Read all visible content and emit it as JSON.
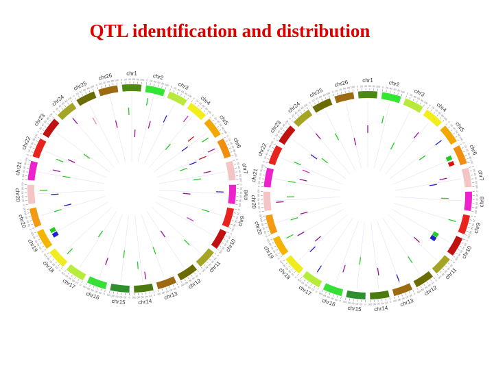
{
  "title": "QTL identification and distribution",
  "chromosomes": [
    {
      "id": "chr1",
      "label": "chr1",
      "color": "#4f8a10"
    },
    {
      "id": "chr2",
      "label": "chr2",
      "color": "#33e633"
    },
    {
      "id": "chr3",
      "label": "chr3",
      "color": "#b9e93a"
    },
    {
      "id": "chr4",
      "label": "chr4",
      "color": "#f2ee1c"
    },
    {
      "id": "chr5",
      "label": "chr5",
      "color": "#f2a800"
    },
    {
      "id": "chr6",
      "label": "chr6",
      "color": "#f28e0e"
    },
    {
      "id": "chr7",
      "label": "chr7",
      "color": "#f5c4c4"
    },
    {
      "id": "chr8",
      "label": "chr8",
      "color": "#ee22cc"
    },
    {
      "id": "chr9",
      "label": "chr9",
      "color": "#e8221c"
    },
    {
      "id": "chr10",
      "label": "chr10",
      "color": "#c01010"
    },
    {
      "id": "chr11",
      "label": "chr11",
      "color": "#a5a525"
    },
    {
      "id": "chr12",
      "label": "chr12",
      "color": "#6b6b00"
    },
    {
      "id": "chr13",
      "label": "chr13",
      "color": "#9c6a10"
    },
    {
      "id": "chr14",
      "label": "chr14",
      "color": "#4a7a10"
    },
    {
      "id": "chr15",
      "label": "chr15",
      "color": "#2f8f2f"
    },
    {
      "id": "chr16",
      "label": "chr16",
      "color": "#36e036"
    },
    {
      "id": "chr17",
      "label": "chr17",
      "color": "#b6ec3a"
    },
    {
      "id": "chr18",
      "label": "chr18",
      "color": "#f0ec20"
    },
    {
      "id": "chr19",
      "label": "chr19",
      "color": "#f5b400"
    },
    {
      "id": "chr20",
      "label": "chr20",
      "color": "#f29a14"
    },
    {
      "id": "chr20b",
      "label": "chr20",
      "color": "#f5c4c4"
    },
    {
      "id": "chr21",
      "label": "chr21",
      "color": "#ee22cc"
    },
    {
      "id": "chr22",
      "label": "chr22",
      "color": "#e8221c"
    },
    {
      "id": "chr23",
      "label": "chr23",
      "color": "#c01010"
    },
    {
      "id": "chr24",
      "label": "chr24",
      "color": "#a5a525"
    },
    {
      "id": "chr25",
      "label": "chr25",
      "color": "#6b6b00"
    },
    {
      "id": "chr26",
      "label": "chr26",
      "color": "#9c6a10"
    }
  ],
  "track_colors": {
    "green": "#22cc22",
    "blue": "#2222cc",
    "red": "#dd1111",
    "purple": "#991199",
    "magenta": "#cc33cc",
    "pink": "#ee88aa"
  },
  "plots": [
    {
      "name": "left",
      "marks": [
        {
          "chr": 0,
          "pos": 0.3,
          "track": 2,
          "color": "green"
        },
        {
          "chr": 0,
          "pos": 0.8,
          "track": 4,
          "color": "purple"
        },
        {
          "chr": 1,
          "pos": 0.2,
          "track": 1,
          "color": "green"
        },
        {
          "chr": 1,
          "pos": 0.7,
          "track": 3,
          "color": "purple"
        },
        {
          "chr": 2,
          "pos": 0.4,
          "track": 2,
          "color": "blue"
        },
        {
          "chr": 3,
          "pos": 0.3,
          "track": 1,
          "color": "magenta"
        },
        {
          "chr": 3,
          "pos": 0.6,
          "track": 4,
          "color": "green"
        },
        {
          "chr": 4,
          "pos": 0.2,
          "track": 2,
          "color": "red"
        },
        {
          "chr": 4,
          "pos": 0.5,
          "track": 3,
          "color": "blue"
        },
        {
          "chr": 4,
          "pos": 0.8,
          "track": 1,
          "color": "green"
        },
        {
          "chr": 5,
          "pos": 0.3,
          "track": 1,
          "color": "purple"
        },
        {
          "chr": 5,
          "pos": 0.5,
          "track": 2,
          "color": "red"
        },
        {
          "chr": 5,
          "pos": 0.6,
          "track": 3,
          "color": "blue"
        },
        {
          "chr": 5,
          "pos": 0.8,
          "track": 4,
          "color": "green"
        },
        {
          "chr": 6,
          "pos": 0.3,
          "track": 2,
          "color": "purple"
        },
        {
          "chr": 6,
          "pos": 0.7,
          "track": 3,
          "color": "green"
        },
        {
          "chr": 7,
          "pos": 0.4,
          "track": 1,
          "color": "blue"
        },
        {
          "chr": 7,
          "pos": 0.7,
          "track": 4,
          "color": "purple"
        },
        {
          "chr": 8,
          "pos": 0.5,
          "track": 2,
          "color": "green"
        },
        {
          "chr": 9,
          "pos": 0.3,
          "track": 3,
          "color": "magenta"
        },
        {
          "chr": 10,
          "pos": 0.6,
          "track": 2,
          "color": "green"
        },
        {
          "chr": 11,
          "pos": 0.4,
          "track": 4,
          "color": "purple"
        },
        {
          "chr": 12,
          "pos": 0.5,
          "track": 3,
          "color": "green"
        },
        {
          "chr": 13,
          "pos": 0.3,
          "track": 1,
          "color": "purple"
        },
        {
          "chr": 13,
          "pos": 0.7,
          "track": 2,
          "color": "green"
        },
        {
          "chr": 14,
          "pos": 0.5,
          "track": 3,
          "color": "green"
        },
        {
          "chr": 15,
          "pos": 0.4,
          "track": 2,
          "color": "purple"
        },
        {
          "chr": 16,
          "pos": 0.6,
          "track": 4,
          "color": "green"
        },
        {
          "chr": 17,
          "pos": 0.3,
          "track": 1,
          "color": "green"
        },
        {
          "chr": 18,
          "pos": 0.4,
          "track": 1,
          "color": "blue",
          "big": true
        },
        {
          "chr": 18,
          "pos": 0.7,
          "track": 1,
          "color": "green",
          "big": true
        },
        {
          "chr": 19,
          "pos": 0.5,
          "track": 2,
          "color": "green"
        },
        {
          "chr": 19,
          "pos": 0.7,
          "track": 3,
          "color": "blue"
        },
        {
          "chr": 20,
          "pos": 0.4,
          "track": 2,
          "color": "blue"
        },
        {
          "chr": 20,
          "pos": 0.7,
          "track": 1,
          "color": "green"
        },
        {
          "chr": 21,
          "pos": 0.5,
          "track": 3,
          "color": "green"
        },
        {
          "chr": 21,
          "pos": 0.8,
          "track": 2,
          "color": "purple"
        },
        {
          "chr": 22,
          "pos": 0.3,
          "track": 2,
          "color": "green"
        },
        {
          "chr": 22,
          "pos": 0.6,
          "track": 3,
          "color": "purple"
        },
        {
          "chr": 23,
          "pos": 0.4,
          "track": 4,
          "color": "green"
        },
        {
          "chr": 24,
          "pos": 0.5,
          "track": 1,
          "color": "purple"
        },
        {
          "chr": 25,
          "pos": 0.3,
          "track": 2,
          "color": "pink"
        },
        {
          "chr": 26,
          "pos": 0.5,
          "track": 3,
          "color": "purple"
        }
      ]
    },
    {
      "name": "right",
      "marks": [
        {
          "chr": 0,
          "pos": 0.5,
          "track": 3,
          "color": "purple"
        },
        {
          "chr": 1,
          "pos": 0.3,
          "track": 2,
          "color": "green"
        },
        {
          "chr": 2,
          "pos": 0.5,
          "track": 4,
          "color": "green"
        },
        {
          "chr": 3,
          "pos": 0.4,
          "track": 2,
          "color": "purple"
        },
        {
          "chr": 4,
          "pos": 0.5,
          "track": 1,
          "color": "blue"
        },
        {
          "chr": 4,
          "pos": 0.7,
          "track": 3,
          "color": "green"
        },
        {
          "chr": 5,
          "pos": 0.4,
          "track": 1,
          "color": "green",
          "big": true
        },
        {
          "chr": 5,
          "pos": 0.75,
          "track": 1,
          "color": "red",
          "big": true
        },
        {
          "chr": 6,
          "pos": 0.3,
          "track": 2,
          "color": "purple"
        },
        {
          "chr": 6,
          "pos": 0.6,
          "track": 3,
          "color": "blue"
        },
        {
          "chr": 7,
          "pos": 0.4,
          "track": 2,
          "color": "green"
        },
        {
          "chr": 8,
          "pos": 0.5,
          "track": 1,
          "color": "green"
        },
        {
          "chr": 9,
          "pos": 0.5,
          "track": 2,
          "color": "green",
          "big": true
        },
        {
          "chr": 9,
          "pos": 0.8,
          "track": 2,
          "color": "blue",
          "big": true
        },
        {
          "chr": 10,
          "pos": 0.4,
          "track": 3,
          "color": "purple"
        },
        {
          "chr": 11,
          "pos": 0.5,
          "track": 2,
          "color": "green"
        },
        {
          "chr": 12,
          "pos": 0.5,
          "track": 1,
          "color": "blue"
        },
        {
          "chr": 13,
          "pos": 0.4,
          "track": 2,
          "color": "purple"
        },
        {
          "chr": 14,
          "pos": 0.5,
          "track": 3,
          "color": "green"
        },
        {
          "chr": 15,
          "pos": 0.3,
          "track": 2,
          "color": "purple"
        },
        {
          "chr": 16,
          "pos": 0.5,
          "track": 1,
          "color": "blue"
        },
        {
          "chr": 17,
          "pos": 0.4,
          "track": 2,
          "color": "blue"
        },
        {
          "chr": 17,
          "pos": 0.7,
          "track": 3,
          "color": "purple"
        },
        {
          "chr": 18,
          "pos": 0.5,
          "track": 2,
          "color": "purple"
        },
        {
          "chr": 18,
          "pos": 0.7,
          "track": 1,
          "color": "green"
        },
        {
          "chr": 19,
          "pos": 0.4,
          "track": 2,
          "color": "green"
        },
        {
          "chr": 19,
          "pos": 0.6,
          "track": 3,
          "color": "purple"
        },
        {
          "chr": 20,
          "pos": 0.4,
          "track": 1,
          "color": "purple"
        },
        {
          "chr": 20,
          "pos": 0.7,
          "track": 2,
          "color": "green"
        },
        {
          "chr": 21,
          "pos": 0.5,
          "track": 2,
          "color": "green"
        },
        {
          "chr": 21,
          "pos": 0.8,
          "track": 3,
          "color": "purple"
        },
        {
          "chr": 22,
          "pos": 0.3,
          "track": 3,
          "color": "magenta"
        },
        {
          "chr": 22,
          "pos": 0.6,
          "track": 2,
          "color": "green"
        },
        {
          "chr": 23,
          "pos": 0.4,
          "track": 3,
          "color": "blue"
        },
        {
          "chr": 23,
          "pos": 0.7,
          "track": 4,
          "color": "green"
        },
        {
          "chr": 24,
          "pos": 0.5,
          "track": 2,
          "color": "purple"
        },
        {
          "chr": 25,
          "pos": 0.4,
          "track": 3,
          "color": "green"
        },
        {
          "chr": 26,
          "pos": 0.5,
          "track": 4,
          "color": "purple"
        }
      ]
    }
  ]
}
